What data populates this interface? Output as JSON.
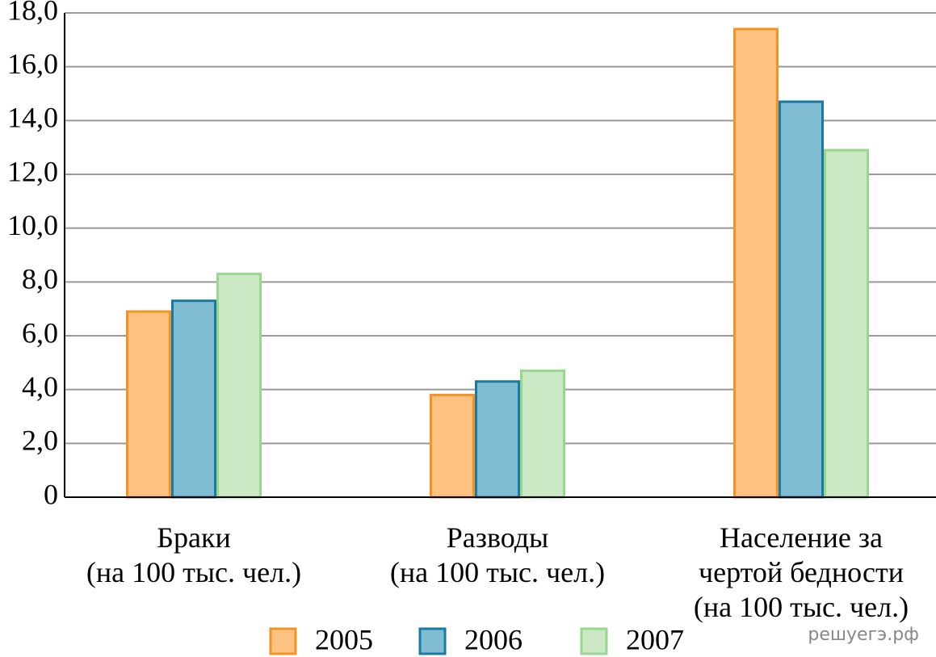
{
  "chart_data": {
    "type": "bar",
    "categories": [
      "Браки\n(на 100 тыс. чел.)",
      "Разводы\n(на 100 тыс. чел.)",
      "Население за\nчертой бедности\n(на 100 тыс. чел.)"
    ],
    "series": [
      {
        "name": "2005",
        "color": "#fdc281",
        "edge_color": "#f39322",
        "values": [
          6.9,
          3.8,
          17.4
        ]
      },
      {
        "name": "2006",
        "color": "#80bdd3",
        "edge_color": "#1b7aa1",
        "values": [
          7.3,
          4.3,
          14.7
        ]
      },
      {
        "name": "2007",
        "color": "#c9e8c3",
        "edge_color": "#98d68f",
        "values": [
          8.3,
          4.7,
          12.9
        ]
      }
    ],
    "ylim": [
      0,
      18
    ],
    "yticks": [
      0,
      {
        "value": 2,
        "label": "2,0"
      },
      {
        "value": 4,
        "label": "4,0"
      },
      {
        "value": 6,
        "label": "6,0"
      },
      {
        "value": 8,
        "label": "8,0"
      },
      {
        "value": 10,
        "label": "10,0"
      },
      {
        "value": 12,
        "label": "12,0"
      },
      {
        "value": 14,
        "label": "14,0"
      },
      {
        "value": 16,
        "label": "16,0"
      },
      {
        "value": 18,
        "label": "18,0"
      }
    ],
    "grid": true,
    "legend": "bottom",
    "watermark": "решуегэ.рф"
  }
}
